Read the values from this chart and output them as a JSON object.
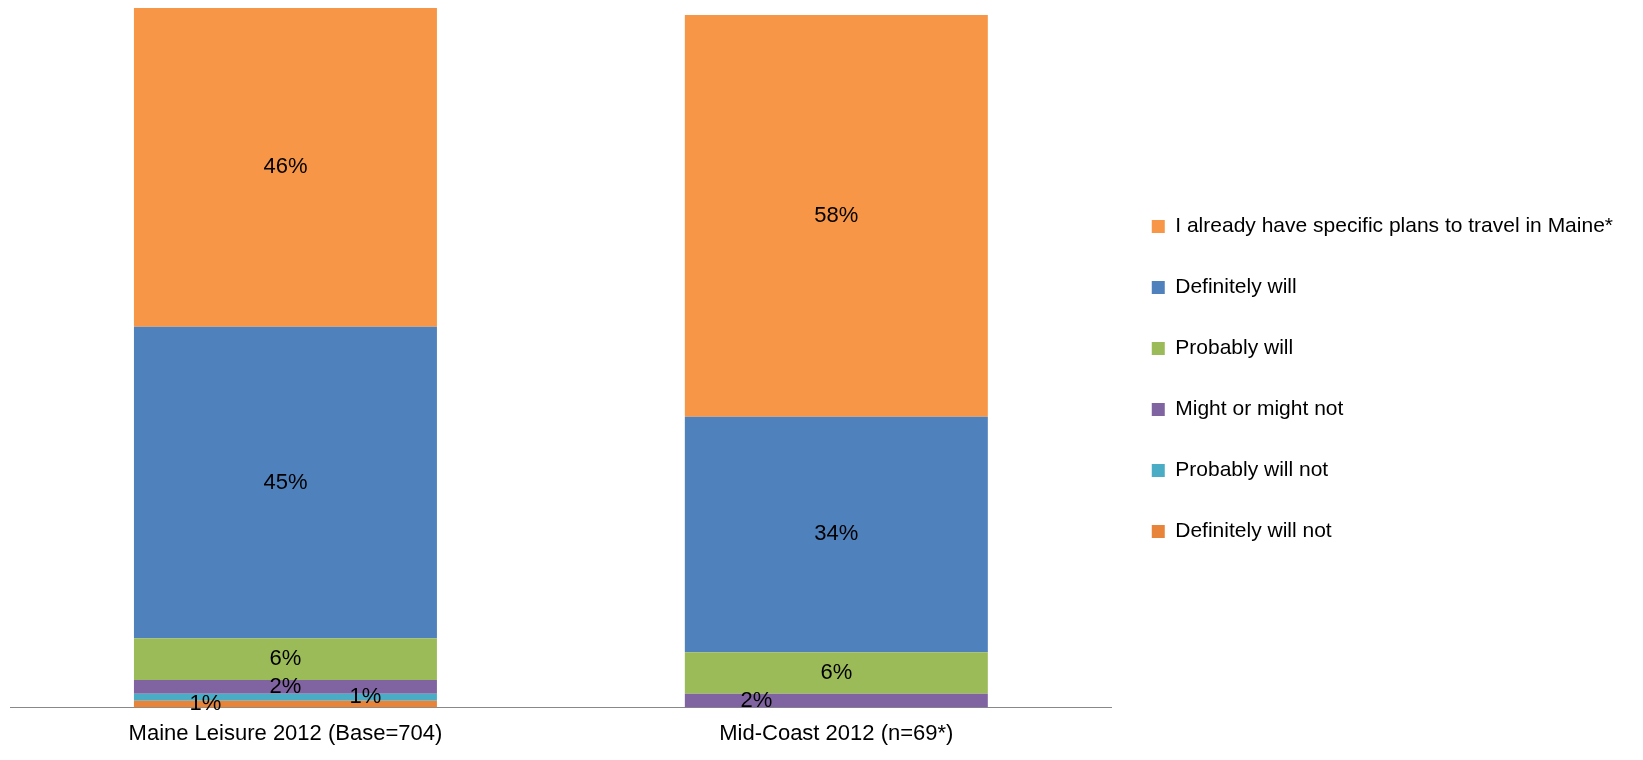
{
  "chart_data": {
    "type": "bar",
    "stacked": true,
    "categories": [
      "Maine Leisure 2012 (Base=704)",
      "Mid-Coast 2012 (n=69*)"
    ],
    "series": [
      {
        "name": "Definitely will not",
        "color": "#e8843a",
        "values": [
          1,
          null
        ],
        "value_labels": [
          "1%",
          null
        ]
      },
      {
        "name": "Probably will not",
        "color": "#4bacc6",
        "values": [
          1,
          null
        ],
        "value_labels": [
          "1%",
          null
        ]
      },
      {
        "name": "Might or might not",
        "color": "#8064a2",
        "values": [
          2,
          2
        ],
        "value_labels": [
          "2%",
          "2%"
        ]
      },
      {
        "name": "Probably will",
        "color": "#9bbb59",
        "values": [
          6,
          6
        ],
        "value_labels": [
          "6%",
          "6%"
        ]
      },
      {
        "name": "Definitely will",
        "color": "#4f81bd",
        "values": [
          45,
          34
        ],
        "value_labels": [
          "45%",
          "34%"
        ]
      },
      {
        "name": "I already have specific plans to travel in Maine*",
        "color": "#f79646",
        "values": [
          46,
          58
        ],
        "value_labels": [
          "46%",
          "58%"
        ]
      }
    ],
    "legend": "right",
    "relative": false,
    "grid": false,
    "tick_labels": "x"
  }
}
